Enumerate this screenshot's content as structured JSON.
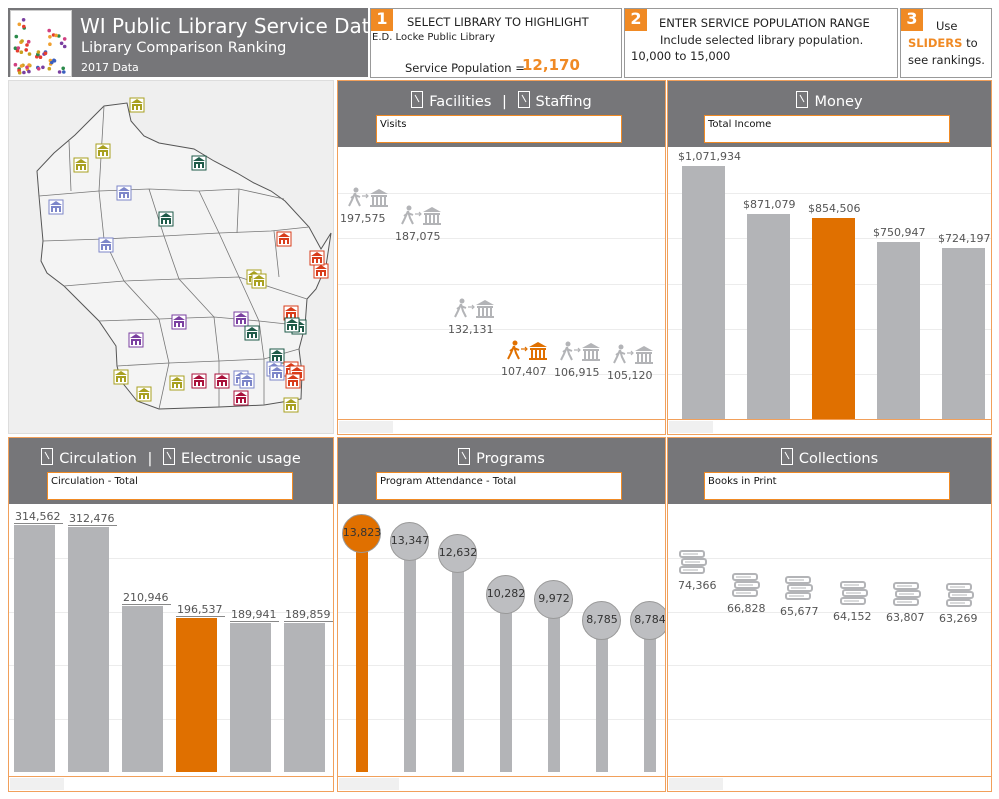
{
  "header": {
    "title": "WI Public Library Service Data",
    "subtitle": "Library Comparison Ranking",
    "year": "2017 Data"
  },
  "step1": {
    "number": "1",
    "heading": "SELECT LIBRARY TO HIGHLIGHT",
    "selected_library": "E.D. Locke Public Library",
    "population_label": "Service Population =",
    "population_value": "12,170"
  },
  "step2": {
    "number": "2",
    "heading": "ENTER SERVICE POPULATION RANGE",
    "subheading": "Include selected library population.",
    "range": "10,000 to 15,000"
  },
  "step3": {
    "number": "3",
    "line1": "Use",
    "sliders": "SLIDERS",
    "to": " to",
    "line3": "see rankings."
  },
  "colors": {
    "accent": "#e07000",
    "bar": "#b3b4b7",
    "header": "#767679",
    "orange_ui": "#f08a24"
  },
  "panels": {
    "facilities": {
      "title_a": "Facilities",
      "sep": "|",
      "title_b": "Staffing",
      "dropdown": "Visits"
    },
    "money": {
      "title": "Money",
      "dropdown": "Total Income"
    },
    "circulation": {
      "title_a": "Circulation",
      "sep": "|",
      "title_b": "Electronic usage",
      "dropdown": "Circulation - Total"
    },
    "programs": {
      "title": "Programs",
      "dropdown": "Program Attendance - Total"
    },
    "collections": {
      "title": "Collections",
      "dropdown": "Books in Print"
    }
  },
  "chart_data": [
    {
      "type": "scatter",
      "title": "Visits",
      "highlight_index": 3,
      "labels": [
        "197,575",
        "187,075",
        "132,131",
        "107,407",
        "106,915",
        "105,120"
      ],
      "values": [
        197575,
        187075,
        132131,
        107407,
        106915,
        105120
      ],
      "ylim": [
        60000,
        220000
      ]
    },
    {
      "type": "bar",
      "title": "Total Income",
      "highlight_index": 2,
      "labels": [
        "$1,071,934",
        "$871,079",
        "$854,506",
        "$750,947",
        "$724,197"
      ],
      "values": [
        1071934,
        871079,
        854506,
        750947,
        724197
      ],
      "ylim": [
        0,
        1150000
      ]
    },
    {
      "type": "bar",
      "title": "Circulation - Total",
      "highlight_index": 3,
      "labels": [
        "314,562",
        "312,476",
        "210,946",
        "196,537",
        "189,941",
        "189,859"
      ],
      "values": [
        314562,
        312476,
        210946,
        196537,
        189941,
        189859
      ],
      "ylim": [
        0,
        340000
      ]
    },
    {
      "type": "lollipop",
      "title": "Program Attendance - Total",
      "highlight_index": 0,
      "labels": [
        "13,823",
        "13,347",
        "12,632",
        "10,282",
        "9,972",
        "8,785",
        "8,784"
      ],
      "values": [
        13823,
        13347,
        12632,
        10282,
        9972,
        8785,
        8784
      ],
      "ylim": [
        0,
        15500
      ]
    },
    {
      "type": "scatter",
      "title": "Books in Print",
      "highlight_index": -1,
      "labels": [
        "74,366",
        "66,828",
        "65,677",
        "64,152",
        "63,807",
        "63,269"
      ],
      "values": [
        74366,
        66828,
        65677,
        64152,
        63807,
        63269
      ],
      "ylim": [
        0,
        90000
      ]
    }
  ]
}
